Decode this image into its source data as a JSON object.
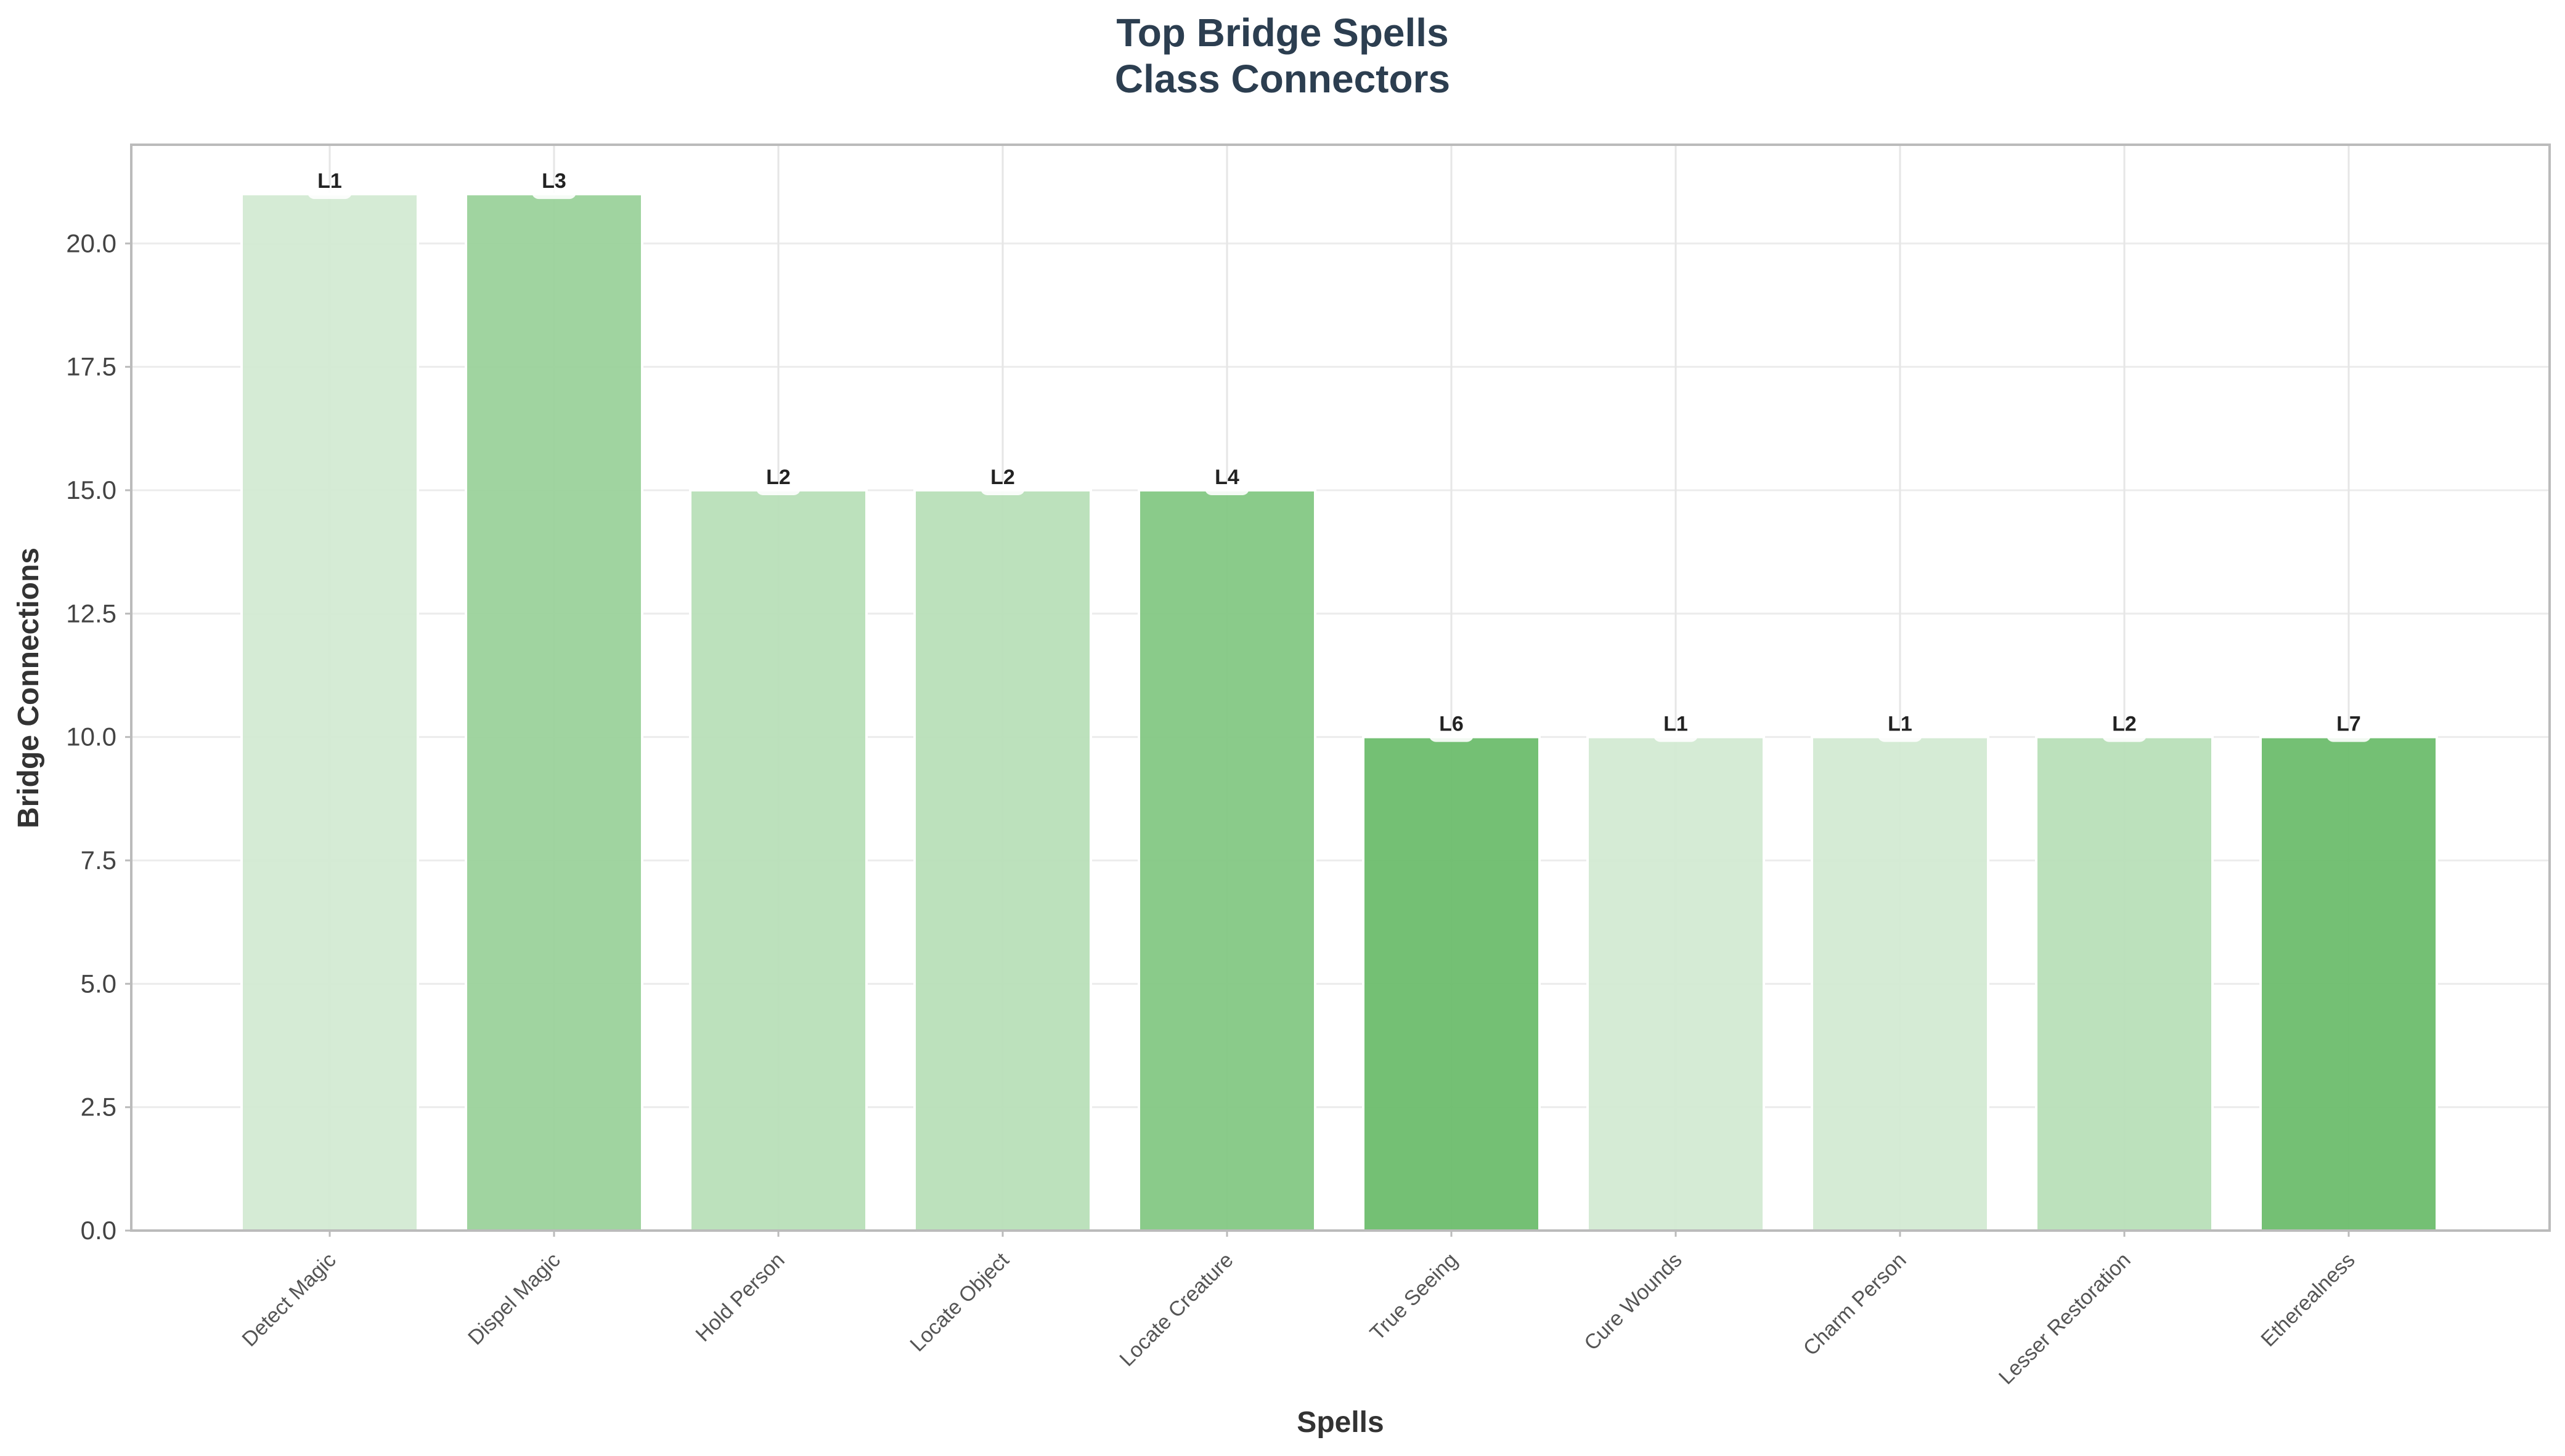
{
  "chart_data": {
    "type": "bar",
    "title": "Top Bridge Spells\nClass Connectors",
    "title_lines": [
      "Top Bridge Spells",
      "Class Connectors"
    ],
    "xlabel": "Spells",
    "ylabel": "Bridge Connections",
    "ylim": [
      0,
      22
    ],
    "yticks": [
      0.0,
      2.5,
      5.0,
      7.5,
      10.0,
      12.5,
      15.0,
      17.5,
      20.0
    ],
    "ytick_labels": [
      "0.0",
      "2.5",
      "5.0",
      "7.5",
      "10.0",
      "12.5",
      "15.0",
      "17.5",
      "20.0"
    ],
    "grid": true,
    "categories": [
      "Detect Magic",
      "Dispel Magic",
      "Hold Person",
      "Locate Object",
      "Locate Creature",
      "True Seeing",
      "Cure Wounds",
      "Charm Person",
      "Lesser Restoration",
      "Etherealness"
    ],
    "values": [
      21,
      21,
      15,
      15,
      15,
      10,
      10,
      10,
      10,
      10
    ],
    "bar_labels": [
      "L1",
      "L3",
      "L2",
      "L2",
      "L4",
      "L6",
      "L1",
      "L1",
      "L2",
      "L7"
    ],
    "bar_colors": [
      "#d3ead3",
      "#9bd29b",
      "#b8dfb8",
      "#b8dfb8",
      "#84c884",
      "#6dbd6d",
      "#d3ead3",
      "#d3ead3",
      "#b8dfb8",
      "#6dbd6d"
    ]
  }
}
